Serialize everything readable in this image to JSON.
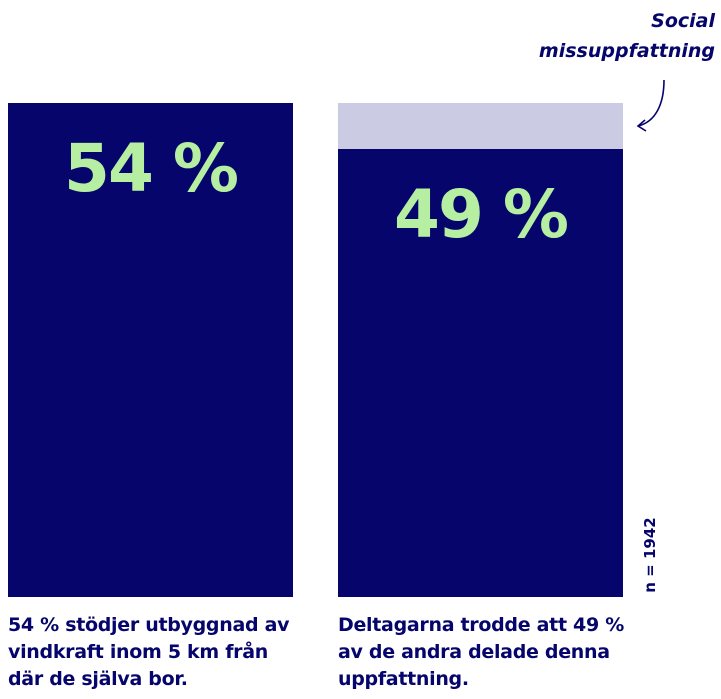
{
  "chart_data": {
    "type": "bar",
    "categories": [
      "54 % stödjer utbyggnad av vindkraft inom 5 km från där de själva bor.",
      "Deltagarna trodde att 49 % av de andra delade denna uppfattning."
    ],
    "series": [
      {
        "name": null,
        "color": "#05056b",
        "values": [
          54,
          49
        ],
        "value_labels": [
          "54 %",
          "49 %"
        ]
      },
      {
        "name": "Social missuppfattning",
        "color": "#cbcbe4",
        "values": [
          null,
          5
        ]
      }
    ],
    "ylim": [
      0,
      54
    ],
    "note": "n = 1942"
  }
}
